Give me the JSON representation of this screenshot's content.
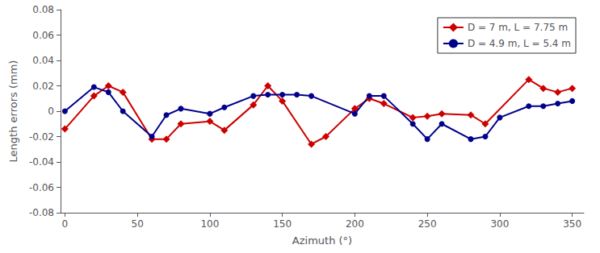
{
  "chart_data": {
    "type": "line",
    "x_label": "Azimuth (°)",
    "y_label": "Length errors (mm)",
    "series": [
      {
        "name": "D = 7 m, L = 7.75 m",
        "color": "#cc0000",
        "marker": "diamond",
        "x": [
          0,
          20,
          30,
          40,
          60,
          70,
          80,
          100,
          110,
          130,
          140,
          150,
          170,
          180,
          200,
          210,
          220,
          240,
          250,
          260,
          280,
          290,
          320,
          330,
          340,
          350
        ],
        "values": [
          -0.014,
          0.012,
          0.02,
          0.015,
          -0.022,
          -0.022,
          -0.01,
          -0.008,
          -0.015,
          0.005,
          0.02,
          0.008,
          -0.026,
          -0.02,
          0.002,
          0.01,
          0.006,
          -0.005,
          -0.004,
          -0.002,
          -0.003,
          -0.01,
          0.025,
          0.018,
          0.015,
          0.018
        ]
      },
      {
        "name": "D = 4.9 m, L = 5.4 m",
        "color": "#00008b",
        "marker": "circle",
        "x": [
          0,
          20,
          30,
          40,
          60,
          70,
          80,
          100,
          110,
          130,
          140,
          150,
          160,
          170,
          200,
          210,
          220,
          240,
          250,
          260,
          280,
          290,
          300,
          320,
          330,
          340,
          350
        ],
        "values": [
          0.0,
          0.019,
          0.015,
          0.0,
          -0.02,
          -0.003,
          0.002,
          -0.002,
          0.003,
          0.012,
          0.013,
          0.013,
          0.013,
          0.012,
          -0.002,
          0.012,
          0.012,
          -0.01,
          -0.022,
          -0.01,
          -0.022,
          -0.02,
          -0.005,
          0.004,
          0.004,
          0.006,
          0.008
        ]
      }
    ],
    "xlim": [
      -3,
      358
    ],
    "xticks": [
      0,
      50,
      100,
      150,
      200,
      250,
      300,
      350
    ],
    "ylim": [
      -0.08,
      0.08
    ],
    "yticks": [
      -0.08,
      -0.06,
      -0.04,
      -0.02,
      0,
      0.02,
      0.04,
      0.06,
      0.08
    ],
    "grid": false,
    "legend": "upper right"
  }
}
